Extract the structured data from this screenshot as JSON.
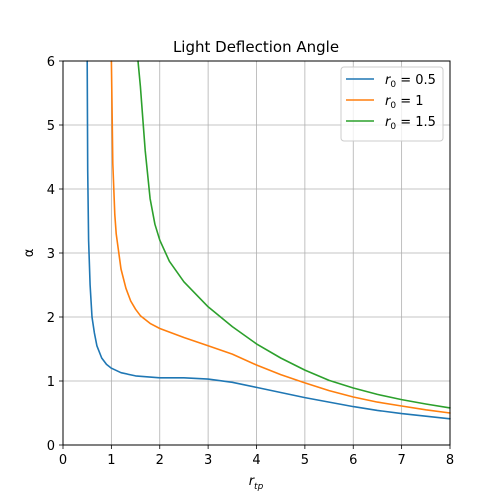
{
  "chart_data": {
    "type": "line",
    "title": "Light Deflection Angle",
    "xlabel": "r_tp",
    "ylabel": "α",
    "xlim": [
      0,
      8
    ],
    "ylim": [
      0,
      6
    ],
    "grid": true,
    "legend_position": "top-right",
    "x_ticks": [
      "0",
      "1",
      "2",
      "3",
      "4",
      "5",
      "6",
      "7",
      "8"
    ],
    "y_ticks": [
      "0",
      "1",
      "2",
      "3",
      "4",
      "5",
      "6"
    ],
    "series": [
      {
        "name": "r_0 = 0.5",
        "legend_sub": "0",
        "legend_value": "0.5",
        "color": "#1f77b4",
        "points": [
          [
            0.5,
            6.0
          ],
          [
            0.51,
            4.3
          ],
          [
            0.53,
            3.2
          ],
          [
            0.56,
            2.5
          ],
          [
            0.6,
            2.0
          ],
          [
            0.65,
            1.75
          ],
          [
            0.7,
            1.55
          ],
          [
            0.8,
            1.36
          ],
          [
            0.9,
            1.26
          ],
          [
            1.0,
            1.2
          ],
          [
            1.2,
            1.13
          ],
          [
            1.5,
            1.08
          ],
          [
            2.0,
            1.05
          ],
          [
            2.5,
            1.05
          ],
          [
            3.0,
            1.03
          ],
          [
            3.5,
            0.98
          ],
          [
            4.0,
            0.9
          ],
          [
            4.5,
            0.82
          ],
          [
            5.0,
            0.74
          ],
          [
            5.5,
            0.67
          ],
          [
            6.0,
            0.6
          ],
          [
            6.5,
            0.54
          ],
          [
            7.0,
            0.49
          ],
          [
            7.5,
            0.45
          ],
          [
            8.0,
            0.41
          ]
        ]
      },
      {
        "name": "r_0 = 1",
        "legend_sub": "0",
        "legend_value": "1",
        "color": "#ff7f0e",
        "points": [
          [
            1.0,
            6.0
          ],
          [
            1.03,
            4.4
          ],
          [
            1.07,
            3.6
          ],
          [
            1.1,
            3.3
          ],
          [
            1.2,
            2.75
          ],
          [
            1.3,
            2.45
          ],
          [
            1.4,
            2.25
          ],
          [
            1.5,
            2.12
          ],
          [
            1.6,
            2.02
          ],
          [
            1.8,
            1.9
          ],
          [
            2.0,
            1.82
          ],
          [
            2.5,
            1.68
          ],
          [
            3.0,
            1.55
          ],
          [
            3.5,
            1.42
          ],
          [
            4.0,
            1.25
          ],
          [
            4.5,
            1.1
          ],
          [
            5.0,
            0.97
          ],
          [
            5.5,
            0.85
          ],
          [
            6.0,
            0.75
          ],
          [
            6.5,
            0.67
          ],
          [
            7.0,
            0.61
          ],
          [
            7.5,
            0.55
          ],
          [
            8.0,
            0.5
          ]
        ]
      },
      {
        "name": "r_0 = 1.5",
        "legend_sub": "0",
        "legend_value": "1.5",
        "color": "#2ca02c",
        "points": [
          [
            1.55,
            6.0
          ],
          [
            1.6,
            5.6
          ],
          [
            1.7,
            4.6
          ],
          [
            1.8,
            3.85
          ],
          [
            1.9,
            3.45
          ],
          [
            2.0,
            3.2
          ],
          [
            2.2,
            2.87
          ],
          [
            2.5,
            2.55
          ],
          [
            3.0,
            2.16
          ],
          [
            3.5,
            1.85
          ],
          [
            4.0,
            1.58
          ],
          [
            4.5,
            1.36
          ],
          [
            5.0,
            1.17
          ],
          [
            5.5,
            1.01
          ],
          [
            6.0,
            0.89
          ],
          [
            6.5,
            0.79
          ],
          [
            7.0,
            0.71
          ],
          [
            7.5,
            0.64
          ],
          [
            8.0,
            0.58
          ]
        ]
      }
    ]
  }
}
